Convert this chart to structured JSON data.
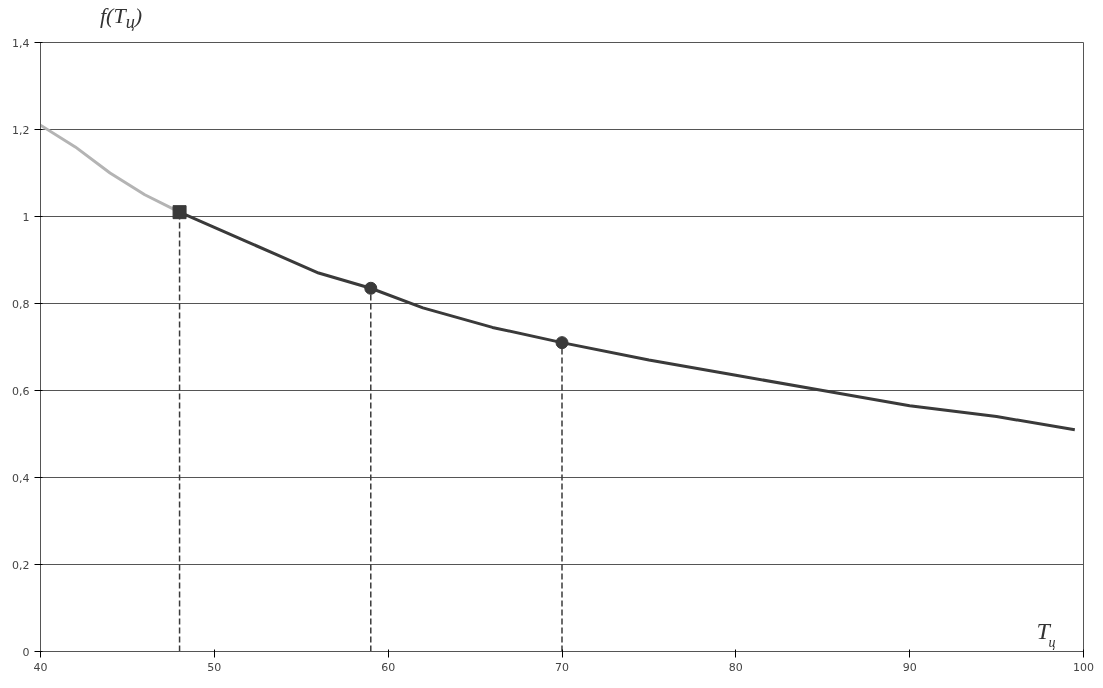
{
  "chart_data": {
    "type": "line",
    "xlabel": "T$_{ц}$",
    "ylabel": "f(T$_{ц}$)",
    "xlim": [
      40,
      100
    ],
    "xticks": [
      40,
      50,
      60,
      70,
      80,
      90,
      100
    ],
    "ylim": [
      0,
      1.4
    ],
    "yticks": [
      {
        "value": 0,
        "label": "0"
      },
      {
        "value": 0.2,
        "label": "0,2"
      },
      {
        "value": 0.4,
        "label": "0,4"
      },
      {
        "value": 0.6,
        "label": "0,6"
      },
      {
        "value": 0.8,
        "label": "0,8"
      },
      {
        "value": 1,
        "label": "1"
      },
      {
        "value": 1.2,
        "label": "1,2"
      },
      {
        "value": 1.4,
        "label": "1,4"
      }
    ],
    "grid": "y",
    "series": [
      {
        "color": "#b4b4b4",
        "x": [
          40,
          42,
          44,
          46,
          48
        ],
        "values": [
          1.21,
          1.16,
          1.1,
          1.05,
          1.01
        ]
      },
      {
        "color": "#3a3a3a",
        "x": [
          48,
          52,
          56,
          59,
          62,
          66,
          70,
          75,
          80,
          85,
          90,
          95,
          99.5
        ],
        "values": [
          1.01,
          0.94,
          0.87,
          0.835,
          0.79,
          0.745,
          0.71,
          0.67,
          0.635,
          0.6,
          0.565,
          0.54,
          0.51
        ]
      },
      {
        "line_style": "dashed",
        "color": "#3a3a3a",
        "x": [
          48,
          48
        ],
        "values": [
          0,
          1.01
        ]
      },
      {
        "line_style": "dashed",
        "color": "#3a3a3a",
        "x": [
          59,
          59
        ],
        "values": [
          0,
          0.835
        ]
      },
      {
        "line_style": "dashed",
        "color": "#3a3a3a",
        "x": [
          70,
          70
        ],
        "values": [
          0,
          0.71
        ]
      },
      {
        "type": "scatter",
        "marker": "square",
        "color": "#3a3a3a",
        "x": [
          48
        ],
        "values": [
          1.01
        ]
      },
      {
        "type": "scatter",
        "marker": "circle",
        "color": "#3a3a3a",
        "x": [
          59
        ],
        "values": [
          0.835
        ]
      },
      {
        "type": "scatter",
        "marker": "circle",
        "color": "#3a3a3a",
        "x": [
          70
        ],
        "values": [
          0.71
        ]
      }
    ]
  }
}
